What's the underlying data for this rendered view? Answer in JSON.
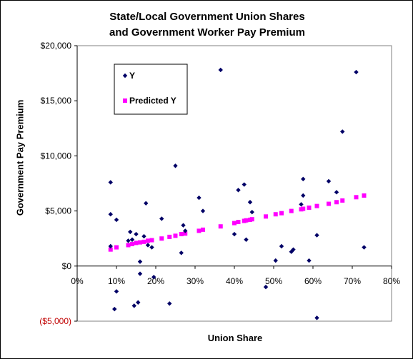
{
  "chart_data": {
    "type": "scatter",
    "title_line1": "State/Local Government Union Shares",
    "title_line2": "and Government Worker Pay Premium",
    "xlabel": "Union Share",
    "ylabel": "Government Pay Premium",
    "xlim": [
      0,
      0.8
    ],
    "ylim": [
      -5000,
      20000
    ],
    "x_ticks": [
      0,
      0.1,
      0.2,
      0.3,
      0.4,
      0.5,
      0.6,
      0.7,
      0.8
    ],
    "x_tick_labels": [
      "0%",
      "10%",
      "20%",
      "30%",
      "40%",
      "50%",
      "60%",
      "70%",
      "80%"
    ],
    "y_ticks": [
      20000,
      15000,
      10000,
      5000,
      0,
      -5000
    ],
    "y_tick_labels": [
      "$20,000",
      "$15,000",
      "$10,000",
      "$5,000",
      "$0",
      "($5,000)"
    ],
    "grid": false,
    "legend_position": "top-left inside plot",
    "series": [
      {
        "name": "Y",
        "color": "#000066",
        "marker": "diamond",
        "points": [
          [
            0.085,
            7600
          ],
          [
            0.085,
            4700
          ],
          [
            0.085,
            1800
          ],
          [
            0.095,
            -3900
          ],
          [
            0.1,
            4200
          ],
          [
            0.1,
            -2300
          ],
          [
            0.13,
            2300
          ],
          [
            0.135,
            3100
          ],
          [
            0.14,
            2400
          ],
          [
            0.145,
            -3600
          ],
          [
            0.15,
            2900
          ],
          [
            0.155,
            -3300
          ],
          [
            0.16,
            400
          ],
          [
            0.16,
            -700
          ],
          [
            0.17,
            2700
          ],
          [
            0.175,
            5700
          ],
          [
            0.18,
            1900
          ],
          [
            0.19,
            1700
          ],
          [
            0.195,
            -1000
          ],
          [
            0.215,
            4300
          ],
          [
            0.235,
            -3400
          ],
          [
            0.25,
            9100
          ],
          [
            0.265,
            1200
          ],
          [
            0.27,
            3700
          ],
          [
            0.275,
            3200
          ],
          [
            0.31,
            6200
          ],
          [
            0.32,
            5000
          ],
          [
            0.365,
            17800
          ],
          [
            0.4,
            2900
          ],
          [
            0.41,
            6900
          ],
          [
            0.425,
            7400
          ],
          [
            0.43,
            2400
          ],
          [
            0.44,
            5800
          ],
          [
            0.445,
            4900
          ],
          [
            0.48,
            -1900
          ],
          [
            0.505,
            500
          ],
          [
            0.52,
            1800
          ],
          [
            0.545,
            1300
          ],
          [
            0.55,
            1500
          ],
          [
            0.57,
            5600
          ],
          [
            0.575,
            7900
          ],
          [
            0.575,
            6400
          ],
          [
            0.59,
            500
          ],
          [
            0.61,
            2800
          ],
          [
            0.61,
            -4700
          ],
          [
            0.64,
            7700
          ],
          [
            0.66,
            6700
          ],
          [
            0.675,
            12200
          ],
          [
            0.71,
            17600
          ],
          [
            0.73,
            1700
          ]
        ]
      },
      {
        "name": "Predicted Y",
        "color": "#ff00ff",
        "marker": "square",
        "points": [
          [
            0.085,
            1500
          ],
          [
            0.1,
            1700
          ],
          [
            0.13,
            1900
          ],
          [
            0.14,
            2000
          ],
          [
            0.15,
            2100
          ],
          [
            0.16,
            2150
          ],
          [
            0.17,
            2200
          ],
          [
            0.18,
            2300
          ],
          [
            0.19,
            2350
          ],
          [
            0.215,
            2500
          ],
          [
            0.235,
            2650
          ],
          [
            0.25,
            2750
          ],
          [
            0.265,
            2900
          ],
          [
            0.275,
            2950
          ],
          [
            0.31,
            3200
          ],
          [
            0.32,
            3300
          ],
          [
            0.365,
            3600
          ],
          [
            0.4,
            3900
          ],
          [
            0.41,
            4000
          ],
          [
            0.425,
            4100
          ],
          [
            0.43,
            4150
          ],
          [
            0.44,
            4200
          ],
          [
            0.445,
            4250
          ],
          [
            0.48,
            4500
          ],
          [
            0.505,
            4700
          ],
          [
            0.52,
            4800
          ],
          [
            0.545,
            5000
          ],
          [
            0.57,
            5150
          ],
          [
            0.575,
            5200
          ],
          [
            0.59,
            5300
          ],
          [
            0.61,
            5450
          ],
          [
            0.64,
            5650
          ],
          [
            0.66,
            5800
          ],
          [
            0.675,
            5950
          ],
          [
            0.71,
            6250
          ],
          [
            0.73,
            6400
          ]
        ]
      }
    ]
  }
}
